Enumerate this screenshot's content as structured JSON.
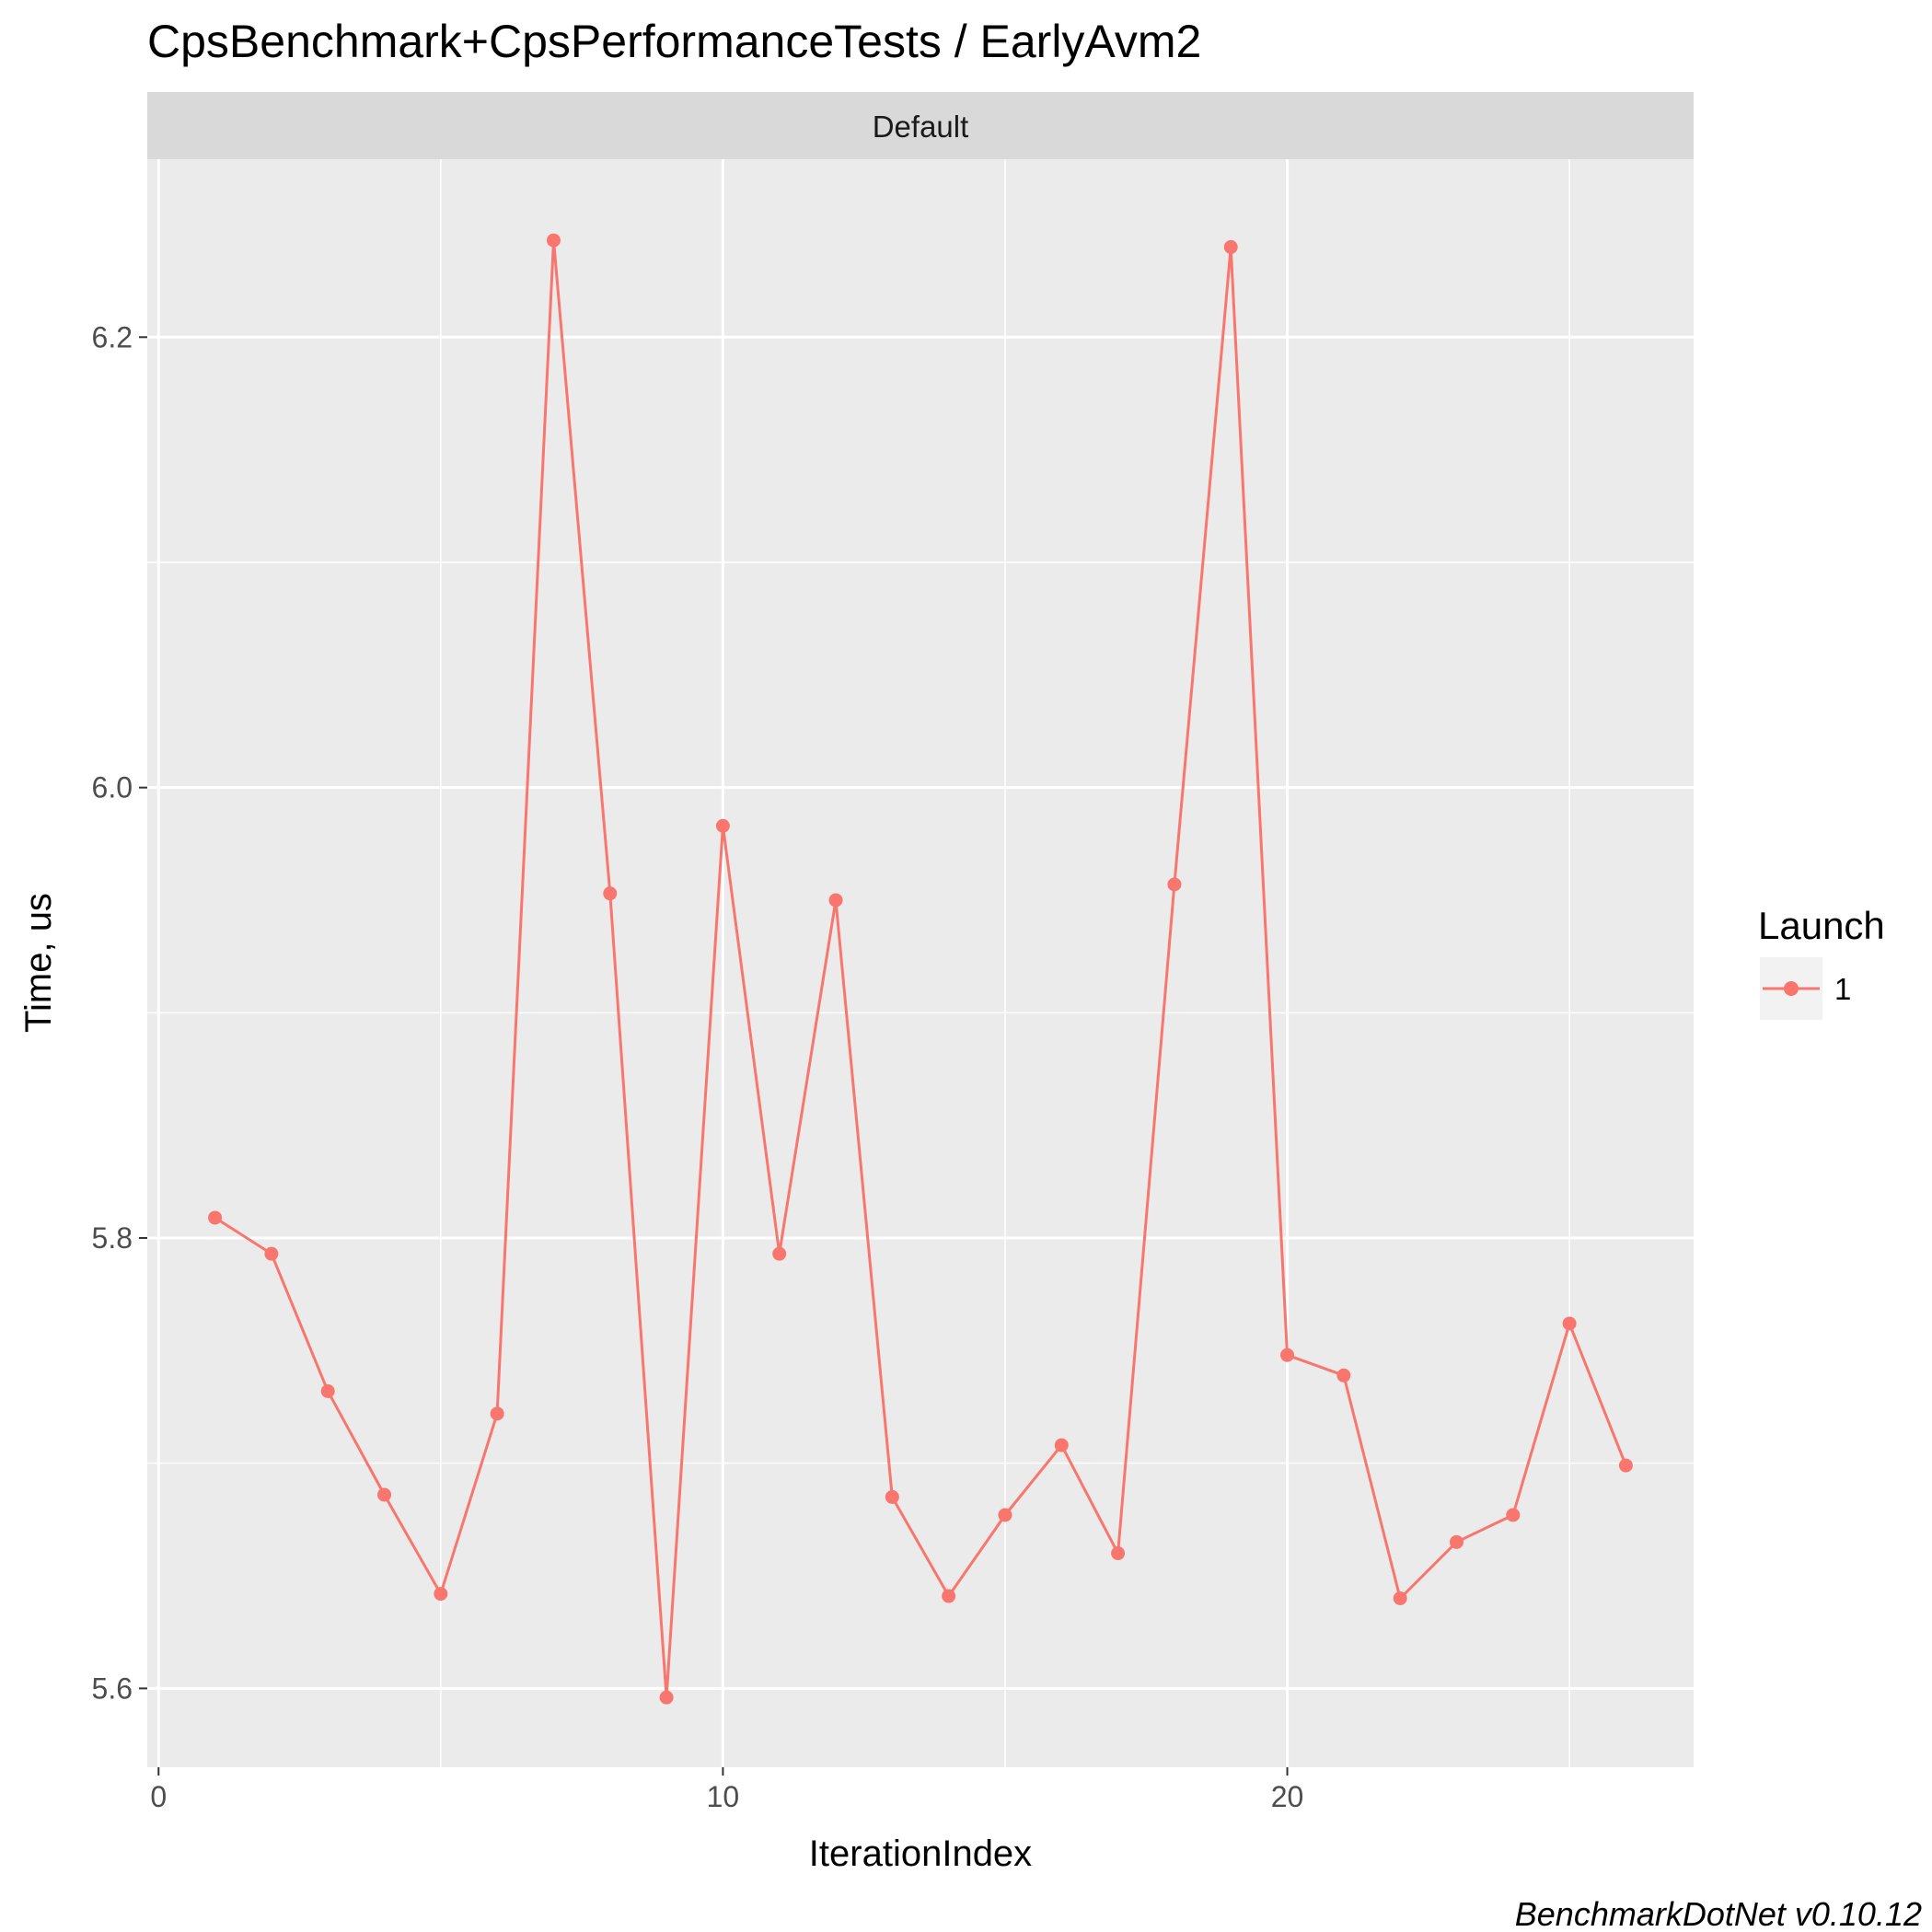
{
  "chart_data": {
    "type": "line",
    "title": "CpsBenchmark+CpsPerformanceTests / EarlyAvm2",
    "facet_label": "Default",
    "xlabel": "IterationIndex",
    "ylabel": "Time, us",
    "xlim": [
      -0.2,
      27.2
    ],
    "ylim": [
      5.565,
      6.279
    ],
    "x_ticks": [
      0,
      10,
      20
    ],
    "x_tick_labels": [
      "0",
      "10",
      "20"
    ],
    "y_ticks": [
      5.6,
      5.8,
      6.0,
      6.2
    ],
    "y_tick_labels": [
      "5.6",
      "5.8",
      "6.0",
      "6.2"
    ],
    "x_minor": [
      5,
      15,
      25
    ],
    "y_minor": [
      5.7,
      5.9,
      6.1
    ],
    "legend": {
      "title": "Launch",
      "placement": "right"
    },
    "series": [
      {
        "name": "1",
        "color": "#F8766D",
        "x": [
          1,
          2,
          3,
          4,
          5,
          6,
          7,
          8,
          9,
          10,
          11,
          12,
          13,
          14,
          15,
          16,
          17,
          18,
          19,
          20,
          21,
          22,
          23,
          24,
          25,
          26
        ],
        "values": [
          5.809,
          5.793,
          5.732,
          5.686,
          5.642,
          5.722,
          6.243,
          5.953,
          5.596,
          5.983,
          5.793,
          5.95,
          5.685,
          5.641,
          5.677,
          5.708,
          5.66,
          5.957,
          6.24,
          5.748,
          5.739,
          5.64,
          5.665,
          5.677,
          5.762,
          5.699
        ]
      }
    ],
    "caption": "BenchmarkDotNet v0.10.12"
  }
}
